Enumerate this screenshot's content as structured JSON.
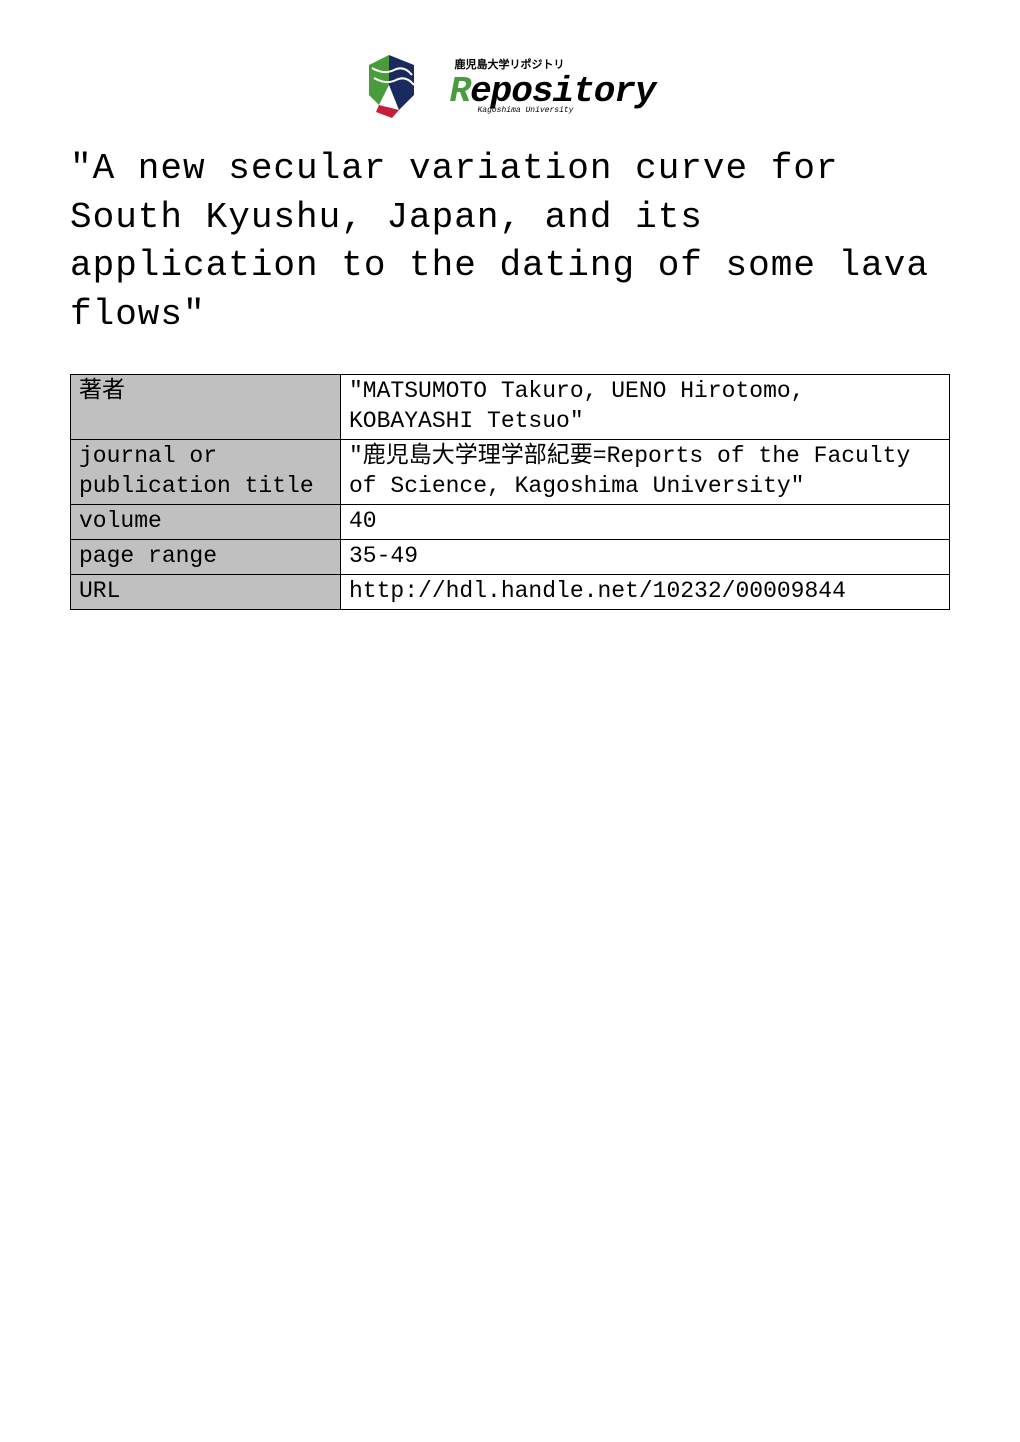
{
  "logo": {
    "tagline": "鹿児島大学リポジトリ",
    "sub": "Kagoshima University",
    "main_r": "R",
    "main_rest": "epository",
    "mark_colors": {
      "green": "#4a9b3e",
      "navy": "#1a2a5e",
      "red": "#c41e3a"
    }
  },
  "title": "\"A new secular variation curve for South Kyushu, Japan, and its application to the dating of some lava flows\"",
  "table": {
    "rows": [
      {
        "label": "著者",
        "value": "\"MATSUMOTO Takuro, UENO Hirotomo, KOBAYASHI Tetsuo\""
      },
      {
        "label": "journal or publication title",
        "value": "\"鹿児島大学理学部紀要=Reports of the Faculty of Science, Kagoshima University\""
      },
      {
        "label": "volume",
        "value": "40"
      },
      {
        "label": "page range",
        "value": "35-49"
      },
      {
        "label": "URL",
        "value": "http://hdl.handle.net/10232/00009844"
      }
    ]
  }
}
